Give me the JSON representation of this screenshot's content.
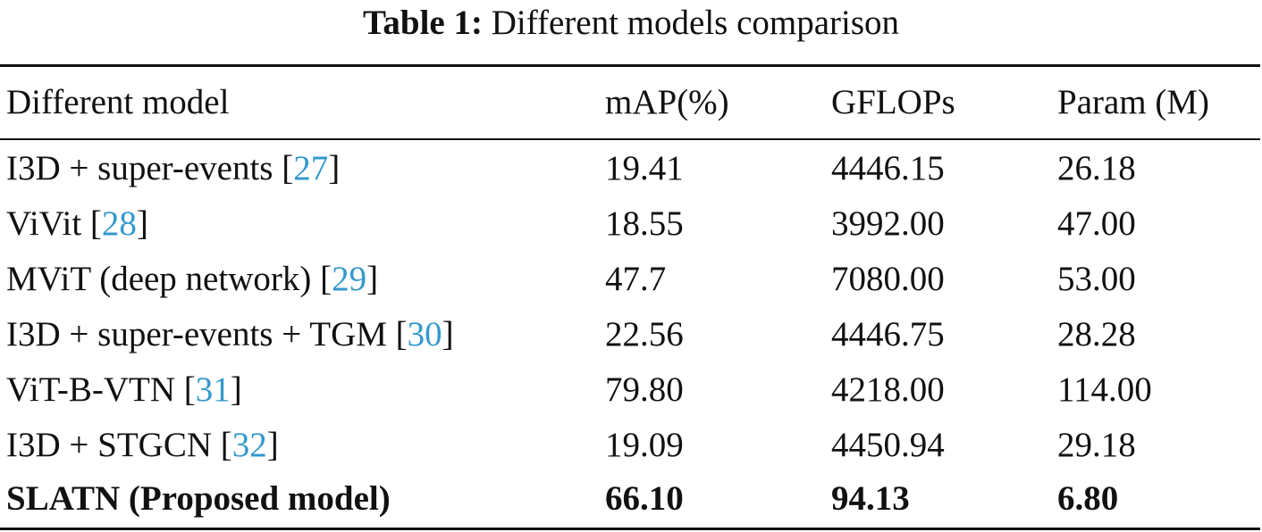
{
  "caption": {
    "label": "Table 1:",
    "text": "Different models comparison"
  },
  "header": [
    "Different model",
    "mAP(%)",
    "GFLOPs",
    "Param (M)"
  ],
  "rows": [
    {
      "model": "I3D + super-events [",
      "ref": "27",
      "close": "]",
      "map": "19.41",
      "gflops": "4446.15",
      "param": "26.18"
    },
    {
      "model": "ViVit [",
      "ref": "28",
      "close": "]",
      "map": "18.55",
      "gflops": "3992.00",
      "param": "47.00"
    },
    {
      "model": "MViT (deep network) [",
      "ref": "29",
      "close": "]",
      "map": "47.7",
      "gflops": "7080.00",
      "param": "53.00"
    },
    {
      "model": "I3D + super-events + TGM [",
      "ref": "30",
      "close": "]",
      "map": "22.56",
      "gflops": "4446.75",
      "param": "28.28"
    },
    {
      "model": "ViT-B-VTN [",
      "ref": "31",
      "close": "]",
      "map": "79.80",
      "gflops": "4218.00",
      "param": "114.00"
    },
    {
      "model": "I3D + STGCN [",
      "ref": "32",
      "close": "]",
      "map": "19.09",
      "gflops": "4450.94",
      "param": "29.18"
    }
  ],
  "proposed": {
    "model": "SLATN (Proposed model)",
    "map": "66.10",
    "gflops": "94.13",
    "param": "6.80"
  },
  "colors": {
    "text": "#111111",
    "citation_link": "#3399cc",
    "background": "#ffffff"
  }
}
